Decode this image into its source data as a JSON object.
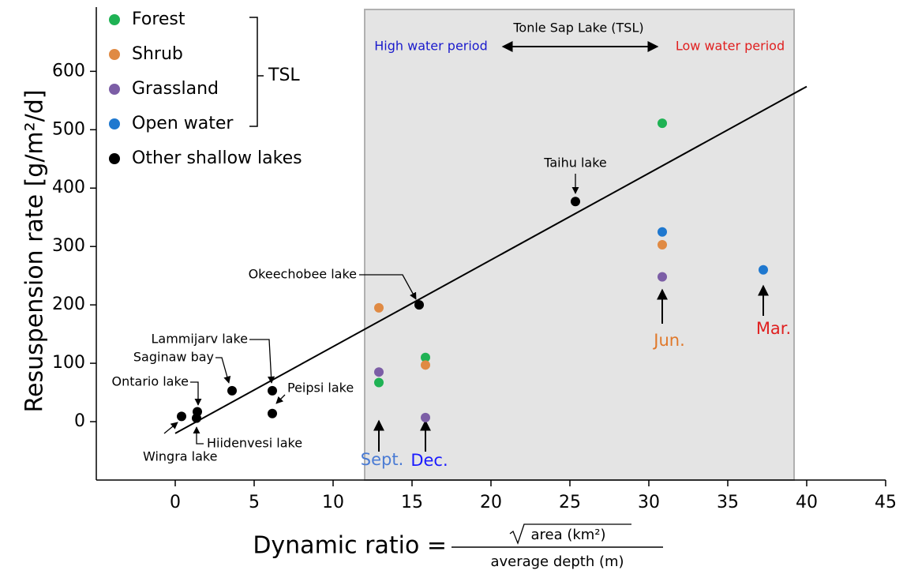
{
  "chart_data": {
    "type": "scatter",
    "x_label": {
      "lhs": "Dynamic ratio =",
      "numerator": "area (km²)",
      "denominator": "average depth (m)"
    },
    "y_label": "Resuspension rate [g/m²/d]",
    "xlim": [
      -5,
      45
    ],
    "xticks": [
      0,
      5,
      10,
      15,
      20,
      25,
      30,
      35,
      40,
      45
    ],
    "ylim": [
      -100,
      710
    ],
    "yticks": [
      0,
      100,
      200,
      300,
      400,
      500,
      600
    ],
    "shaded_region": {
      "x": [
        12,
        39.2
      ],
      "color": "#e4e4e4"
    },
    "period_title": "Tonle Sap Lake (TSL)",
    "high_water_label": {
      "text": "High water period",
      "color": "#1a1acc"
    },
    "low_water_label": {
      "text": "Low water period",
      "color": "#e02020"
    },
    "legend_group_label": "TSL",
    "month_labels": [
      {
        "text": "Sept.",
        "color": "#4a7bd4"
      },
      {
        "text": "Dec.",
        "color": "#1a1aff"
      },
      {
        "text": "Jun.",
        "color": "#e0782a"
      },
      {
        "text": "Mar.",
        "color": "#e02020"
      }
    ],
    "series": [
      {
        "name": "Forest",
        "color": "#1fb254",
        "x": [
          12.9,
          15.85,
          30.85
        ],
        "values": [
          67,
          110,
          511
        ]
      },
      {
        "name": "Shrub",
        "color": "#e08a43",
        "x": [
          12.9,
          15.85,
          30.85
        ],
        "values": [
          195,
          97,
          303
        ]
      },
      {
        "name": "Grassland",
        "color": "#7c5ea6",
        "x": [
          12.9,
          15.85,
          30.85
        ],
        "values": [
          85,
          7,
          248
        ]
      },
      {
        "name": "Open water",
        "color": "#1f78cf",
        "x": [
          30.85,
          37.25
        ],
        "values": [
          325,
          260
        ]
      },
      {
        "name": "Other shallow lakes",
        "color": "#000000",
        "x": [
          0.4,
          1.35,
          1.4,
          3.6,
          6.15,
          6.15,
          15.45,
          25.35
        ],
        "values": [
          9,
          6,
          17,
          53,
          53,
          14,
          200,
          377
        ],
        "point_labels": [
          "Wingra lake",
          "Hiidenvesi lake",
          "Ontario lake",
          "Saginaw bay",
          "Lammijarv lake",
          "Peipsi lake",
          "Okeechobee lake",
          "Taihu lake"
        ]
      }
    ],
    "trend_line": {
      "x": [
        0,
        40
      ],
      "values": [
        -20,
        574
      ],
      "color": "#000000"
    }
  }
}
